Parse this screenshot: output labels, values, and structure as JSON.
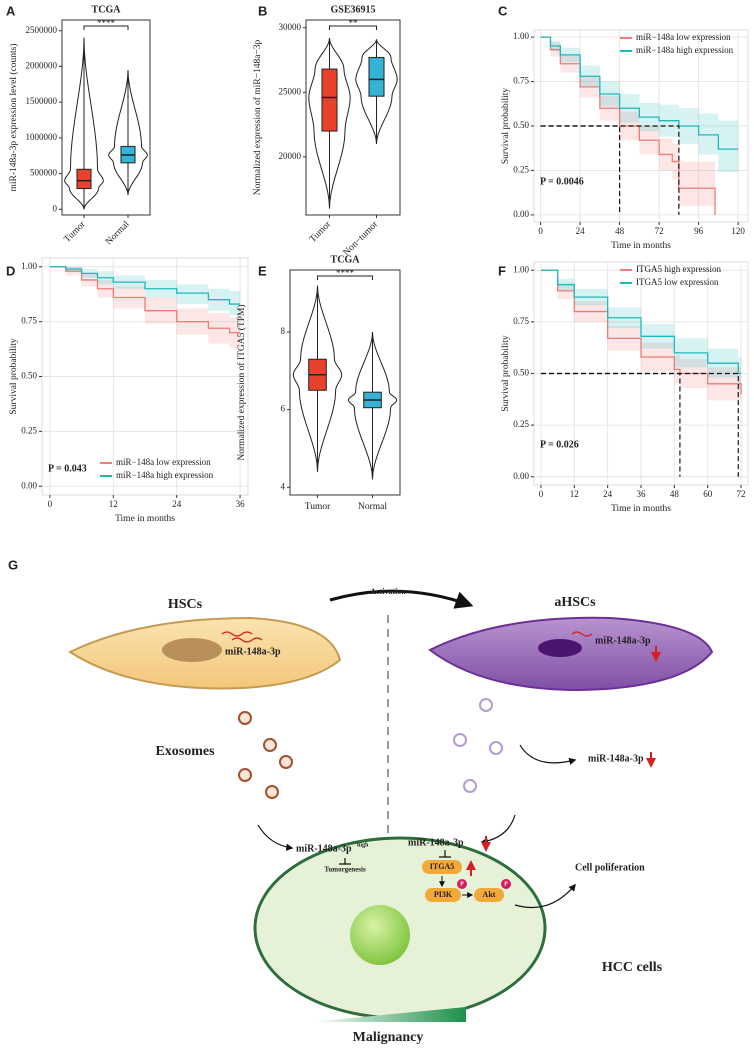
{
  "chart_data": [
    {
      "type": "violin",
      "label": "A",
      "title": "TCGA",
      "ylabel": "miR-148a-3p expression level (counts)",
      "categories": [
        "Tumor",
        "Normal"
      ],
      "colors": [
        "#e8412c",
        "#34b3d4"
      ],
      "xtick_rotation": 45,
      "boxes": [
        {
          "min": 0,
          "q1": 290000,
          "median": 400000,
          "q3": 560000,
          "max": 2400000
        },
        {
          "min": 200000,
          "q1": 650000,
          "median": 760000,
          "q3": 880000,
          "max": 1950000
        }
      ],
      "significance": "****",
      "ylim": [
        -80000,
        2650000
      ],
      "yticks": [
        0,
        500000,
        1000000,
        1500000,
        2000000,
        2500000
      ]
    },
    {
      "type": "violin",
      "label": "B",
      "title": "GSE36915",
      "ylabel": "Normalized expression of miR−148a−3p",
      "categories": [
        "Tumor",
        "Non−tumor"
      ],
      "colors": [
        "#e8412c",
        "#34b3d4"
      ],
      "xtick_rotation": 45,
      "boxes": [
        {
          "min": 16000,
          "q1": 22000,
          "median": 24600,
          "q3": 26800,
          "max": 29200
        },
        {
          "min": 21000,
          "q1": 24700,
          "median": 26000,
          "q3": 27700,
          "max": 29100
        }
      ],
      "significance": "**",
      "ylim": [
        15500,
        30600
      ],
      "yticks": [
        20000,
        25000,
        30000
      ]
    },
    {
      "type": "km",
      "label": "C",
      "xlabel": "Time in months",
      "ylabel": "Survival probability",
      "annotation": "P = 0.0046",
      "legend": "top-right",
      "series": [
        {
          "name": "miR−148a low expression",
          "color": "#f07c74",
          "x": [
            0,
            6,
            12,
            24,
            36,
            48,
            60,
            72,
            80,
            84,
            96,
            106
          ],
          "values": [
            1,
            0.93,
            0.85,
            0.72,
            0.6,
            0.5,
            0.42,
            0.34,
            0.3,
            0.15,
            0.15,
            0
          ],
          "lower": [
            1,
            0.89,
            0.8,
            0.66,
            0.53,
            0.42,
            0.34,
            0.25,
            0.2,
            0.05,
            0.05,
            0
          ],
          "upper": [
            1,
            0.97,
            0.9,
            0.78,
            0.67,
            0.58,
            0.5,
            0.43,
            0.4,
            0.3,
            0.3,
            0
          ]
        },
        {
          "name": "miR−148a high expression",
          "color": "#1fb8bc",
          "x": [
            0,
            6,
            12,
            24,
            36,
            48,
            60,
            72,
            84,
            96,
            108,
            120
          ],
          "values": [
            1,
            0.95,
            0.9,
            0.78,
            0.68,
            0.6,
            0.55,
            0.53,
            0.5,
            0.45,
            0.37,
            0.37
          ],
          "lower": [
            1,
            0.92,
            0.86,
            0.72,
            0.61,
            0.52,
            0.47,
            0.44,
            0.4,
            0.34,
            0.24,
            0.24
          ],
          "upper": [
            1,
            0.98,
            0.94,
            0.84,
            0.75,
            0.68,
            0.63,
            0.62,
            0.6,
            0.57,
            0.53,
            0.53
          ]
        }
      ],
      "reference_lines": [
        {
          "x": 48,
          "y": 0.5
        },
        {
          "x": 84,
          "y": 0.5
        }
      ],
      "xlim": [
        -4,
        126
      ],
      "xticks": [
        0,
        24,
        48,
        72,
        96,
        120
      ],
      "ylim": [
        -0.04,
        1.04
      ],
      "yticks": [
        {
          "value": 0,
          "label": "0.00"
        },
        {
          "value": 0.25,
          "label": "0.25"
        },
        {
          "value": 0.5,
          "label": "0.50"
        },
        {
          "value": 0.75,
          "label": "0.75"
        },
        {
          "value": 1,
          "label": "1.00"
        }
      ]
    },
    {
      "type": "km",
      "label": "D",
      "xlabel": "Time in months",
      "ylabel": "Survival probability",
      "annotation": "P = 0.043",
      "legend": "bottom-left",
      "series": [
        {
          "name": "miR−148a low expression",
          "color": "#f07c74",
          "x": [
            0,
            3,
            6,
            9,
            12,
            18,
            24,
            30,
            34,
            36
          ],
          "values": [
            1,
            0.98,
            0.94,
            0.9,
            0.86,
            0.8,
            0.75,
            0.72,
            0.7,
            0.7
          ],
          "lower": [
            1,
            0.96,
            0.91,
            0.86,
            0.81,
            0.74,
            0.69,
            0.65,
            0.63,
            0.63
          ],
          "upper": [
            1,
            1,
            0.97,
            0.94,
            0.91,
            0.86,
            0.81,
            0.79,
            0.77,
            0.77
          ]
        },
        {
          "name": "miR−148a high expression",
          "color": "#1fb8bc",
          "x": [
            0,
            3,
            6,
            9,
            12,
            18,
            24,
            30,
            34,
            36
          ],
          "values": [
            1,
            0.99,
            0.97,
            0.95,
            0.93,
            0.9,
            0.88,
            0.85,
            0.83,
            0.83
          ],
          "lower": [
            1,
            0.98,
            0.95,
            0.92,
            0.9,
            0.86,
            0.83,
            0.8,
            0.78,
            0.78
          ],
          "upper": [
            1,
            1,
            0.99,
            0.98,
            0.96,
            0.94,
            0.92,
            0.9,
            0.89,
            0.89
          ]
        }
      ],
      "reference_lines": [],
      "xlim": [
        -1.5,
        37.5
      ],
      "xticks": [
        0,
        12,
        24,
        36
      ],
      "ylim": [
        -0.04,
        1.04
      ],
      "yticks": [
        {
          "value": 0,
          "label": "0.00"
        },
        {
          "value": 0.25,
          "label": "0.25"
        },
        {
          "value": 0.5,
          "label": "0.50"
        },
        {
          "value": 0.75,
          "label": "0.75"
        },
        {
          "value": 1,
          "label": "1.00"
        }
      ]
    },
    {
      "type": "violin",
      "label": "E",
      "title": "TCGA",
      "ylabel": "Normalized expression of ITGA5 (TPM)",
      "categories": [
        "Tumor",
        "Normal"
      ],
      "colors": [
        "#e8412c",
        "#34b3d4"
      ],
      "xtick_rotation": 0,
      "boxes": [
        {
          "min": 4.4,
          "q1": 6.5,
          "median": 6.9,
          "q3": 7.3,
          "max": 9.2
        },
        {
          "min": 4.2,
          "q1": 6.05,
          "median": 6.25,
          "q3": 6.45,
          "max": 8.0
        }
      ],
      "significance": "****",
      "ylim": [
        3.8,
        9.6
      ],
      "yticks": [
        4,
        6,
        8
      ]
    },
    {
      "type": "km",
      "label": "F",
      "xlabel": "Time in months",
      "ylabel": "Survival probability",
      "annotation": "P = 0.026",
      "legend": "top-right",
      "series": [
        {
          "name": "ITGA5 high expression",
          "color": "#f07c74",
          "x": [
            0,
            6,
            12,
            24,
            36,
            48,
            50,
            60,
            72
          ],
          "values": [
            1,
            0.9,
            0.8,
            0.67,
            0.58,
            0.52,
            0.5,
            0.45,
            0.4
          ],
          "lower": [
            1,
            0.86,
            0.75,
            0.61,
            0.51,
            0.45,
            0.43,
            0.37,
            0.32
          ],
          "upper": [
            1,
            0.94,
            0.85,
            0.73,
            0.65,
            0.59,
            0.57,
            0.53,
            0.48
          ]
        },
        {
          "name": "ITGA5 low expression",
          "color": "#1fb8bc",
          "x": [
            0,
            6,
            12,
            24,
            36,
            48,
            60,
            71,
            72
          ],
          "values": [
            1,
            0.93,
            0.87,
            0.77,
            0.68,
            0.6,
            0.55,
            0.5,
            0.5
          ],
          "lower": [
            1,
            0.9,
            0.83,
            0.72,
            0.62,
            0.53,
            0.48,
            0.42,
            0.42
          ],
          "upper": [
            1,
            0.96,
            0.91,
            0.82,
            0.74,
            0.67,
            0.62,
            0.58,
            0.58
          ]
        }
      ],
      "reference_lines": [
        {
          "x": 50,
          "y": 0.5
        },
        {
          "x": 71,
          "y": 0.5
        }
      ],
      "xlim": [
        -2.5,
        74.5
      ],
      "xticks": [
        0,
        12,
        24,
        36,
        48,
        60,
        72
      ],
      "ylim": [
        -0.04,
        1.04
      ],
      "yticks": [
        {
          "value": 0,
          "label": "0.00"
        },
        {
          "value": 0.25,
          "label": "0.25"
        },
        {
          "value": 0.5,
          "label": "0.50"
        },
        {
          "value": 0.75,
          "label": "0.75"
        },
        {
          "value": 1,
          "label": "1.00"
        }
      ]
    }
  ],
  "diagram": {
    "label": "G",
    "hsc": "HSCs",
    "ahsc": "aHSCs",
    "activation": "Activation",
    "hsc_mirna": "miR-148a-3p",
    "ahsc_mirna": "miR-148a-3p",
    "exosomes": "Exosomes",
    "released_mirna": "miR-148a-3p",
    "high_mirna": "miR-148a-3p",
    "high_sup": "high",
    "tumorgenesis": "Tumorgenesis",
    "cell_mirna": "miR-148a-3p",
    "itga5": "ITGA5",
    "pi3k": "PI3K",
    "akt": "Akt",
    "phospho": "P",
    "proliferation": "Cell poliferation",
    "hcc": "HCC cells",
    "malignancy": "Malignancy"
  }
}
